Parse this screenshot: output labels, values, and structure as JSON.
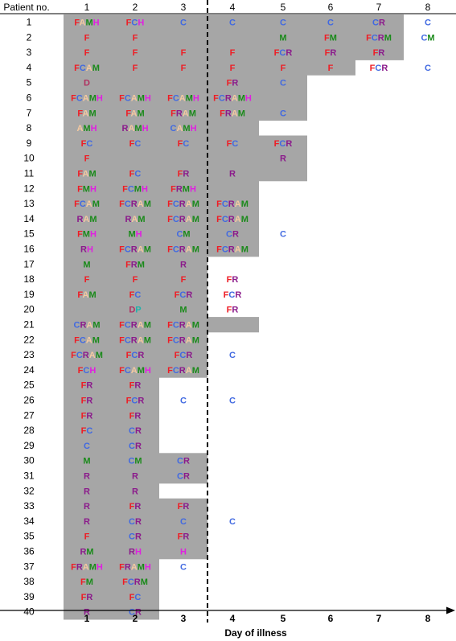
{
  "chart_data": {
    "type": "table",
    "header_label": "Patient no.",
    "xlabel": "Day of illness",
    "days": [
      "1",
      "2",
      "3",
      "4",
      "5",
      "6",
      "7",
      "8"
    ],
    "patients": [
      "1",
      "2",
      "3",
      "4",
      "5",
      "6",
      "7",
      "8",
      "9",
      "10",
      "11",
      "12",
      "13",
      "14",
      "15",
      "16",
      "17",
      "18",
      "19",
      "20",
      "21",
      "22",
      "23",
      "24",
      "25",
      "26",
      "27",
      "28",
      "29",
      "30",
      "31",
      "32",
      "33",
      "34",
      "35",
      "36",
      "37",
      "38",
      "39",
      "40"
    ],
    "colors": {
      "F": "#ee1c24",
      "C": "#4169e1",
      "A": "#f5c9a0",
      "M": "#1a8a1a",
      "H": "#e020e0",
      "R": "#8b1a8b",
      "D": "#b03060",
      "P": "#20b2aa"
    },
    "shading_color": "#a6a6a6",
    "shaded_through_day": [
      7,
      7,
      7,
      6,
      5,
      5,
      5,
      4,
      5,
      5,
      5,
      4,
      4,
      4,
      4,
      4,
      3,
      3,
      3,
      3,
      4,
      3,
      3,
      3,
      2,
      2,
      2,
      2,
      2,
      3,
      3,
      2,
      3,
      3,
      3,
      3,
      2,
      2,
      2,
      2
    ],
    "cells": [
      [
        "FAMH",
        "FCH",
        "C",
        "C",
        "C",
        "C",
        "CR",
        "C"
      ],
      [
        "F",
        "F",
        "",
        "",
        "M",
        "FM",
        "FCRM",
        "CM"
      ],
      [
        "F",
        "F",
        "F",
        "F",
        "FCR",
        "FR",
        "FR",
        ""
      ],
      [
        "FCAM",
        "F",
        "F",
        "F",
        "F",
        "F",
        "FCR",
        "C"
      ],
      [
        "D",
        "",
        "",
        "FR",
        "C",
        "",
        "",
        ""
      ],
      [
        "FCAMH",
        "FCAMH",
        "FCAMH",
        "FCRAMH",
        "",
        "",
        "",
        ""
      ],
      [
        "FAM",
        "FAM",
        "FRAM",
        "FRAM",
        "C",
        "",
        "",
        ""
      ],
      [
        "AMH",
        "RAMH",
        "CAMH",
        "",
        "",
        "",
        "",
        ""
      ],
      [
        "FC",
        "FC",
        "FC",
        "FC",
        "FCR",
        "",
        "",
        ""
      ],
      [
        "F",
        "",
        "",
        "",
        "R",
        "",
        "",
        ""
      ],
      [
        "FAM",
        "FC",
        "FR",
        "R",
        "",
        "",
        "",
        ""
      ],
      [
        "FMH",
        "FCMH",
        "FRMH",
        "",
        "",
        "",
        "",
        ""
      ],
      [
        "FCAM",
        "FCRAM",
        "FCRAM",
        "FCRAM",
        "",
        "",
        "",
        ""
      ],
      [
        "RAM",
        "RAM",
        "FCRAM",
        "FCRAM",
        "",
        "",
        "",
        ""
      ],
      [
        "FMH",
        "MH",
        "CM",
        "CR",
        "C",
        "",
        "",
        ""
      ],
      [
        "RH",
        "FCRAM",
        "FCRAM",
        "FCRAM",
        "",
        "",
        "",
        ""
      ],
      [
        "M",
        "FRM",
        "R",
        "",
        "",
        "",
        "",
        ""
      ],
      [
        "F",
        "F",
        "F",
        "FR",
        "",
        "",
        "",
        ""
      ],
      [
        "FAM",
        "FC",
        "FCR",
        "FCR",
        "",
        "",
        "",
        ""
      ],
      [
        "",
        "DP",
        "M",
        "FR",
        "",
        "",
        "",
        ""
      ],
      [
        "CRAM",
        "FCRAM",
        "FCRAM",
        "",
        "",
        "",
        "",
        ""
      ],
      [
        "FCAM",
        "FCRAM",
        "FCRAM",
        "",
        "",
        "",
        "",
        ""
      ],
      [
        "FCRAM",
        "FCR",
        "FCR",
        "C",
        "",
        "",
        "",
        ""
      ],
      [
        "FCH",
        "FCAMH",
        "FCRAM",
        "",
        "",
        "",
        "",
        ""
      ],
      [
        "FR",
        "FR",
        "",
        "",
        "",
        "",
        "",
        ""
      ],
      [
        "FR",
        "FCR",
        "C",
        "C",
        "",
        "",
        "",
        ""
      ],
      [
        "FR",
        "FR",
        "",
        "",
        "",
        "",
        "",
        ""
      ],
      [
        "FC",
        "CR",
        "",
        "",
        "",
        "",
        "",
        ""
      ],
      [
        "C",
        "CR",
        "",
        "",
        "",
        "",
        "",
        ""
      ],
      [
        "M",
        "CM",
        "CR",
        "",
        "",
        "",
        "",
        ""
      ],
      [
        "R",
        "R",
        "CR",
        "",
        "",
        "",
        "",
        ""
      ],
      [
        "R",
        "R",
        "",
        "",
        "",
        "",
        "",
        ""
      ],
      [
        "R",
        "FR",
        "FR",
        "",
        "",
        "",
        "",
        ""
      ],
      [
        "R",
        "CR",
        "C",
        "C",
        "",
        "",
        "",
        ""
      ],
      [
        "F",
        "CR",
        "FR",
        "",
        "",
        "",
        "",
        ""
      ],
      [
        "RM",
        "RH",
        "H",
        "",
        "",
        "",
        "",
        ""
      ],
      [
        "FRAMH",
        "FRAMH",
        "C",
        "",
        "",
        "",
        "",
        ""
      ],
      [
        "FM",
        "FCRM",
        "",
        "",
        "",
        "",
        "",
        ""
      ],
      [
        "FR",
        "FC",
        "",
        "",
        "",
        "",
        "",
        ""
      ],
      [
        "R",
        "CR",
        "",
        "",
        "",
        "",
        "",
        ""
      ]
    ]
  }
}
